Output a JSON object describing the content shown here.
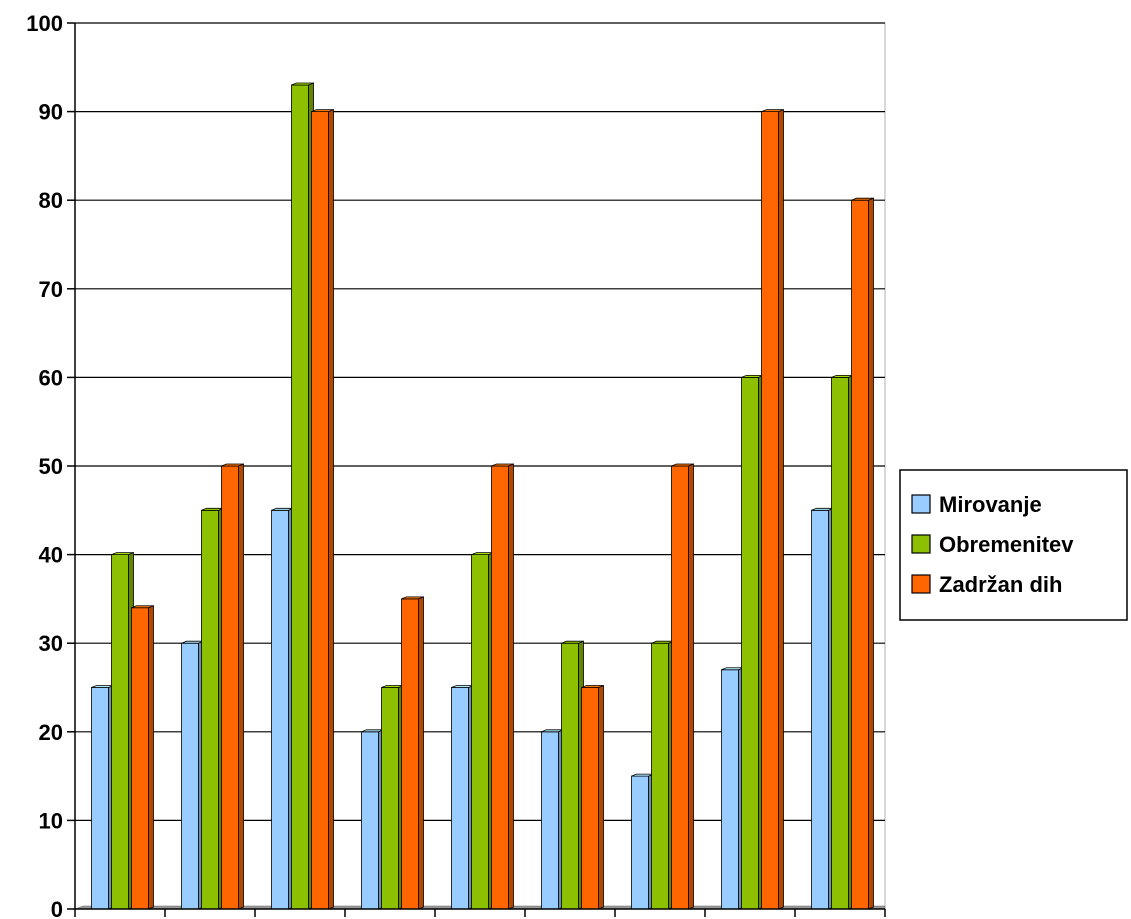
{
  "chart_data": {
    "type": "bar",
    "categories": [
      "",
      "",
      "",
      "",
      "",
      "",
      "",
      "",
      ""
    ],
    "ylim": [
      0,
      100
    ],
    "yticks": [
      0,
      10,
      20,
      30,
      40,
      50,
      60,
      70,
      80,
      90,
      100
    ],
    "grid": true,
    "legend_position": "right",
    "series": [
      {
        "name": "Mirovanje",
        "color": "#99ccff",
        "values": [
          25,
          30,
          45,
          20,
          25,
          20,
          15,
          27,
          45
        ]
      },
      {
        "name": "Obremenitev",
        "color": "#8dc000",
        "values": [
          40,
          45,
          93,
          25,
          40,
          30,
          30,
          60,
          60
        ]
      },
      {
        "name": "Zadržan dih",
        "color": "#ff6600",
        "values": [
          34,
          50,
          90,
          35,
          50,
          25,
          50,
          90,
          80
        ]
      }
    ]
  }
}
